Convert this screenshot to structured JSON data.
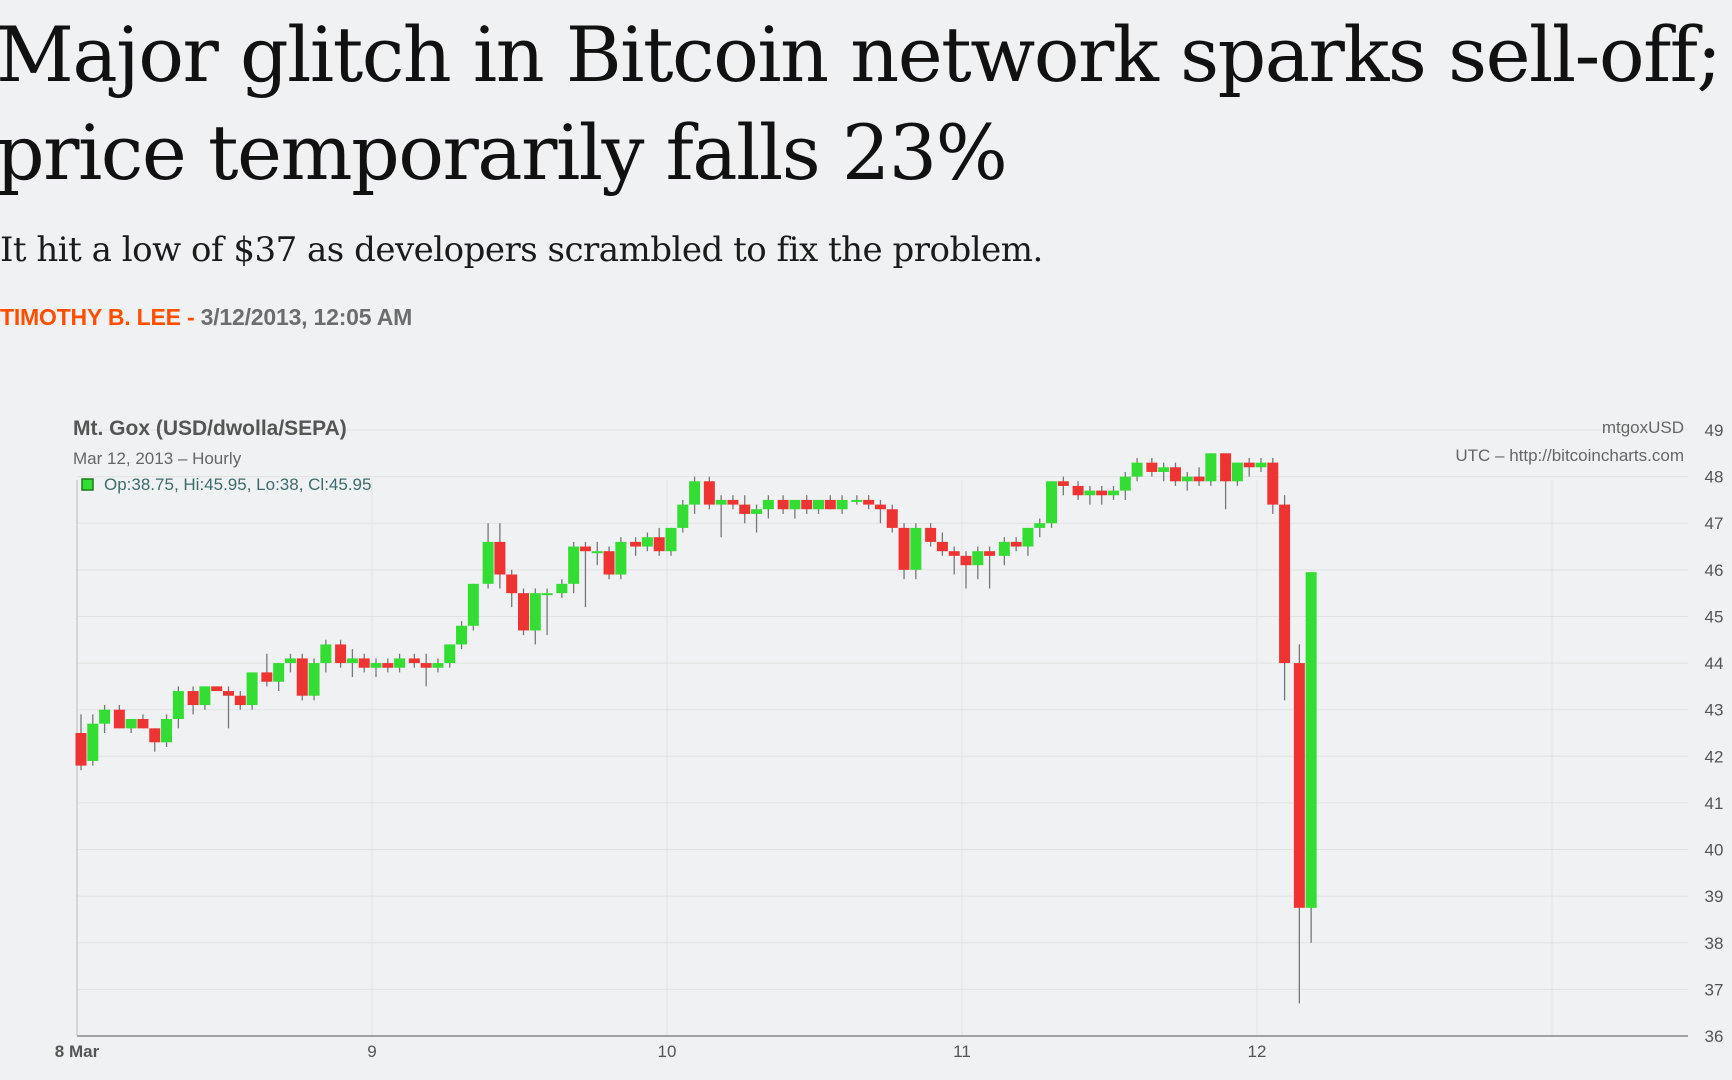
{
  "article": {
    "headline": "Major glitch in Bitcoin network sparks sell-off; price temporarily falls 23%",
    "dek": "It hit a low of $37 as developers scrambled to fix the problem.",
    "author": "TIMOTHY B. LEE",
    "separator": " - ",
    "date": "3/12/2013, 12:05 AM"
  },
  "colors": {
    "accent": "#ff4e00",
    "up_candle": "#33dd33",
    "down_candle": "#ee3333"
  },
  "chart_data": {
    "type": "candlestick",
    "title": "Mt. Gox (USD/dwolla/SEPA)",
    "subtitle": "Mar 12, 2013 – Hourly",
    "ohlc_readout": "Op:38.75, Hi:45.95, Lo:38, Cl:45.95",
    "source_line_1": "mtgoxUSD",
    "source_line_2": "UTC – http://bitcoincharts.com",
    "x_tick_labels": [
      "8 Mar",
      "9",
      "10",
      "11",
      "12"
    ],
    "y_tick_labels": [
      "36",
      "37",
      "38",
      "39",
      "40",
      "41",
      "42",
      "43",
      "44",
      "45",
      "46",
      "47",
      "48",
      "49"
    ],
    "ylim": [
      36,
      49
    ],
    "x_range_days": [
      0,
      5
    ],
    "grid": true,
    "candles": [
      {
        "t": 0.0,
        "o": 42.5,
        "h": 42.9,
        "l": 41.7,
        "c": 41.8
      },
      {
        "t": 0.04,
        "o": 41.9,
        "h": 42.9,
        "l": 41.8,
        "c": 42.7
      },
      {
        "t": 0.08,
        "o": 42.7,
        "h": 43.1,
        "l": 42.5,
        "c": 43.0
      },
      {
        "t": 0.13,
        "o": 43.0,
        "h": 43.1,
        "l": 42.6,
        "c": 42.6
      },
      {
        "t": 0.17,
        "o": 42.6,
        "h": 42.8,
        "l": 42.5,
        "c": 42.8
      },
      {
        "t": 0.21,
        "o": 42.8,
        "h": 42.9,
        "l": 42.6,
        "c": 42.6
      },
      {
        "t": 0.25,
        "o": 42.6,
        "h": 42.6,
        "l": 42.1,
        "c": 42.3
      },
      {
        "t": 0.29,
        "o": 42.3,
        "h": 42.9,
        "l": 42.2,
        "c": 42.8
      },
      {
        "t": 0.33,
        "o": 42.8,
        "h": 43.5,
        "l": 42.6,
        "c": 43.4
      },
      {
        "t": 0.38,
        "o": 43.4,
        "h": 43.5,
        "l": 42.9,
        "c": 43.1
      },
      {
        "t": 0.42,
        "o": 43.1,
        "h": 43.5,
        "l": 43.0,
        "c": 43.5
      },
      {
        "t": 0.46,
        "o": 43.5,
        "h": 43.5,
        "l": 43.4,
        "c": 43.4
      },
      {
        "t": 0.5,
        "o": 43.4,
        "h": 43.5,
        "l": 42.6,
        "c": 43.3
      },
      {
        "t": 0.54,
        "o": 43.3,
        "h": 43.4,
        "l": 43.0,
        "c": 43.1
      },
      {
        "t": 0.58,
        "o": 43.1,
        "h": 43.8,
        "l": 43.0,
        "c": 43.8
      },
      {
        "t": 0.63,
        "o": 43.8,
        "h": 44.2,
        "l": 43.5,
        "c": 43.6
      },
      {
        "t": 0.67,
        "o": 43.6,
        "h": 44.0,
        "l": 43.4,
        "c": 44.0
      },
      {
        "t": 0.71,
        "o": 44.0,
        "h": 44.2,
        "l": 43.8,
        "c": 44.1
      },
      {
        "t": 0.75,
        "o": 44.1,
        "h": 44.2,
        "l": 43.2,
        "c": 43.3
      },
      {
        "t": 0.79,
        "o": 43.3,
        "h": 44.1,
        "l": 43.2,
        "c": 44.0
      },
      {
        "t": 0.83,
        "o": 44.0,
        "h": 44.5,
        "l": 43.8,
        "c": 44.4
      },
      {
        "t": 0.88,
        "o": 44.4,
        "h": 44.5,
        "l": 43.9,
        "c": 44.0
      },
      {
        "t": 0.92,
        "o": 44.0,
        "h": 44.3,
        "l": 43.7,
        "c": 44.1
      },
      {
        "t": 0.96,
        "o": 44.1,
        "h": 44.2,
        "l": 43.8,
        "c": 43.9
      },
      {
        "t": 1.0,
        "o": 43.9,
        "h": 44.1,
        "l": 43.7,
        "c": 44.0
      },
      {
        "t": 1.04,
        "o": 44.0,
        "h": 44.1,
        "l": 43.8,
        "c": 43.9
      },
      {
        "t": 1.08,
        "o": 43.9,
        "h": 44.2,
        "l": 43.8,
        "c": 44.1
      },
      {
        "t": 1.13,
        "o": 44.1,
        "h": 44.2,
        "l": 43.9,
        "c": 44.0
      },
      {
        "t": 1.17,
        "o": 44.0,
        "h": 44.2,
        "l": 43.5,
        "c": 43.9
      },
      {
        "t": 1.21,
        "o": 43.9,
        "h": 44.1,
        "l": 43.8,
        "c": 44.0
      },
      {
        "t": 1.25,
        "o": 44.0,
        "h": 44.4,
        "l": 43.9,
        "c": 44.4
      },
      {
        "t": 1.29,
        "o": 44.4,
        "h": 44.9,
        "l": 44.3,
        "c": 44.8
      },
      {
        "t": 1.33,
        "o": 44.8,
        "h": 45.7,
        "l": 44.7,
        "c": 45.7
      },
      {
        "t": 1.38,
        "o": 45.7,
        "h": 47.0,
        "l": 45.6,
        "c": 46.6
      },
      {
        "t": 1.42,
        "o": 46.6,
        "h": 47.0,
        "l": 45.6,
        "c": 45.9
      },
      {
        "t": 1.46,
        "o": 45.9,
        "h": 46.0,
        "l": 45.2,
        "c": 45.5
      },
      {
        "t": 1.5,
        "o": 45.5,
        "h": 45.6,
        "l": 44.6,
        "c": 44.7
      },
      {
        "t": 1.54,
        "o": 44.7,
        "h": 45.6,
        "l": 44.4,
        "c": 45.5
      },
      {
        "t": 1.58,
        "o": 45.5,
        "h": 45.6,
        "l": 44.6,
        "c": 45.5
      },
      {
        "t": 1.63,
        "o": 45.5,
        "h": 45.8,
        "l": 45.4,
        "c": 45.7
      },
      {
        "t": 1.67,
        "o": 45.7,
        "h": 46.6,
        "l": 45.5,
        "c": 46.5
      },
      {
        "t": 1.71,
        "o": 46.5,
        "h": 46.6,
        "l": 45.2,
        "c": 46.4
      },
      {
        "t": 1.75,
        "o": 46.4,
        "h": 46.6,
        "l": 46.1,
        "c": 46.4
      },
      {
        "t": 1.79,
        "o": 46.4,
        "h": 46.5,
        "l": 45.8,
        "c": 45.9
      },
      {
        "t": 1.83,
        "o": 45.9,
        "h": 46.7,
        "l": 45.8,
        "c": 46.6
      },
      {
        "t": 1.88,
        "o": 46.6,
        "h": 46.7,
        "l": 46.3,
        "c": 46.5
      },
      {
        "t": 1.92,
        "o": 46.5,
        "h": 46.8,
        "l": 46.4,
        "c": 46.7
      },
      {
        "t": 1.96,
        "o": 46.7,
        "h": 46.9,
        "l": 46.3,
        "c": 46.4
      },
      {
        "t": 2.0,
        "o": 46.4,
        "h": 46.9,
        "l": 46.3,
        "c": 46.9
      },
      {
        "t": 2.04,
        "o": 46.9,
        "h": 47.5,
        "l": 46.8,
        "c": 47.4
      },
      {
        "t": 2.08,
        "o": 47.4,
        "h": 48.0,
        "l": 47.2,
        "c": 47.9
      },
      {
        "t": 2.13,
        "o": 47.9,
        "h": 48.0,
        "l": 47.3,
        "c": 47.4
      },
      {
        "t": 2.17,
        "o": 47.4,
        "h": 47.6,
        "l": 46.7,
        "c": 47.5
      },
      {
        "t": 2.21,
        "o": 47.5,
        "h": 47.6,
        "l": 47.3,
        "c": 47.4
      },
      {
        "t": 2.25,
        "o": 47.4,
        "h": 47.6,
        "l": 47.0,
        "c": 47.2
      },
      {
        "t": 2.29,
        "o": 47.2,
        "h": 47.4,
        "l": 46.8,
        "c": 47.3
      },
      {
        "t": 2.33,
        "o": 47.3,
        "h": 47.6,
        "l": 47.1,
        "c": 47.5
      },
      {
        "t": 2.38,
        "o": 47.5,
        "h": 47.6,
        "l": 47.2,
        "c": 47.3
      },
      {
        "t": 2.42,
        "o": 47.3,
        "h": 47.5,
        "l": 47.1,
        "c": 47.5
      },
      {
        "t": 2.46,
        "o": 47.5,
        "h": 47.6,
        "l": 47.2,
        "c": 47.3
      },
      {
        "t": 2.5,
        "o": 47.3,
        "h": 47.5,
        "l": 47.2,
        "c": 47.5
      },
      {
        "t": 2.54,
        "o": 47.5,
        "h": 47.6,
        "l": 47.3,
        "c": 47.3
      },
      {
        "t": 2.58,
        "o": 47.3,
        "h": 47.6,
        "l": 47.2,
        "c": 47.5
      },
      {
        "t": 2.63,
        "o": 47.5,
        "h": 47.6,
        "l": 47.4,
        "c": 47.5
      },
      {
        "t": 2.67,
        "o": 47.5,
        "h": 47.6,
        "l": 47.3,
        "c": 47.4
      },
      {
        "t": 2.71,
        "o": 47.4,
        "h": 47.5,
        "l": 47.0,
        "c": 47.3
      },
      {
        "t": 2.75,
        "o": 47.3,
        "h": 47.4,
        "l": 46.8,
        "c": 46.9
      },
      {
        "t": 2.79,
        "o": 46.9,
        "h": 47.0,
        "l": 45.8,
        "c": 46.0
      },
      {
        "t": 2.83,
        "o": 46.0,
        "h": 47.0,
        "l": 45.8,
        "c": 46.9
      },
      {
        "t": 2.88,
        "o": 46.9,
        "h": 47.0,
        "l": 46.5,
        "c": 46.6
      },
      {
        "t": 2.92,
        "o": 46.6,
        "h": 46.8,
        "l": 46.3,
        "c": 46.4
      },
      {
        "t": 2.96,
        "o": 46.4,
        "h": 46.5,
        "l": 45.9,
        "c": 46.3
      },
      {
        "t": 3.0,
        "o": 46.3,
        "h": 46.4,
        "l": 45.6,
        "c": 46.1
      },
      {
        "t": 3.04,
        "o": 46.1,
        "h": 46.5,
        "l": 45.8,
        "c": 46.4
      },
      {
        "t": 3.08,
        "o": 46.4,
        "h": 46.5,
        "l": 45.6,
        "c": 46.3
      },
      {
        "t": 3.13,
        "o": 46.3,
        "h": 46.7,
        "l": 46.1,
        "c": 46.6
      },
      {
        "t": 3.17,
        "o": 46.6,
        "h": 46.7,
        "l": 46.4,
        "c": 46.5
      },
      {
        "t": 3.21,
        "o": 46.5,
        "h": 46.9,
        "l": 46.3,
        "c": 46.9
      },
      {
        "t": 3.25,
        "o": 46.9,
        "h": 47.1,
        "l": 46.7,
        "c": 47.0
      },
      {
        "t": 3.29,
        "o": 47.0,
        "h": 47.9,
        "l": 46.9,
        "c": 47.9
      },
      {
        "t": 3.33,
        "o": 47.9,
        "h": 48.0,
        "l": 47.6,
        "c": 47.8
      },
      {
        "t": 3.38,
        "o": 47.8,
        "h": 47.9,
        "l": 47.5,
        "c": 47.6
      },
      {
        "t": 3.42,
        "o": 47.6,
        "h": 47.8,
        "l": 47.4,
        "c": 47.7
      },
      {
        "t": 3.46,
        "o": 47.7,
        "h": 47.8,
        "l": 47.4,
        "c": 47.6
      },
      {
        "t": 3.5,
        "o": 47.6,
        "h": 47.8,
        "l": 47.5,
        "c": 47.7
      },
      {
        "t": 3.54,
        "o": 47.7,
        "h": 48.1,
        "l": 47.5,
        "c": 48.0
      },
      {
        "t": 3.58,
        "o": 48.0,
        "h": 48.4,
        "l": 47.9,
        "c": 48.3
      },
      {
        "t": 3.63,
        "o": 48.3,
        "h": 48.4,
        "l": 48.0,
        "c": 48.1
      },
      {
        "t": 3.67,
        "o": 48.1,
        "h": 48.3,
        "l": 47.9,
        "c": 48.2
      },
      {
        "t": 3.71,
        "o": 48.2,
        "h": 48.3,
        "l": 47.8,
        "c": 47.9
      },
      {
        "t": 3.75,
        "o": 47.9,
        "h": 48.1,
        "l": 47.7,
        "c": 48.0
      },
      {
        "t": 3.79,
        "o": 48.0,
        "h": 48.2,
        "l": 47.8,
        "c": 47.9
      },
      {
        "t": 3.83,
        "o": 47.9,
        "h": 48.5,
        "l": 47.8,
        "c": 48.5
      },
      {
        "t": 3.88,
        "o": 48.5,
        "h": 48.5,
        "l": 47.3,
        "c": 47.9
      },
      {
        "t": 3.92,
        "o": 47.9,
        "h": 48.3,
        "l": 47.8,
        "c": 48.3
      },
      {
        "t": 3.96,
        "o": 48.3,
        "h": 48.4,
        "l": 48.0,
        "c": 48.2
      },
      {
        "t": 4.0,
        "o": 48.2,
        "h": 48.4,
        "l": 48.1,
        "c": 48.3
      },
      {
        "t": 4.04,
        "o": 48.3,
        "h": 48.4,
        "l": 47.2,
        "c": 47.4
      },
      {
        "t": 4.08,
        "o": 47.4,
        "h": 47.6,
        "l": 43.2,
        "c": 44.0
      },
      {
        "t": 4.13,
        "o": 44.0,
        "h": 44.4,
        "l": 36.7,
        "c": 38.75
      },
      {
        "t": 4.17,
        "o": 38.75,
        "h": 45.95,
        "l": 38.0,
        "c": 45.95
      }
    ]
  }
}
